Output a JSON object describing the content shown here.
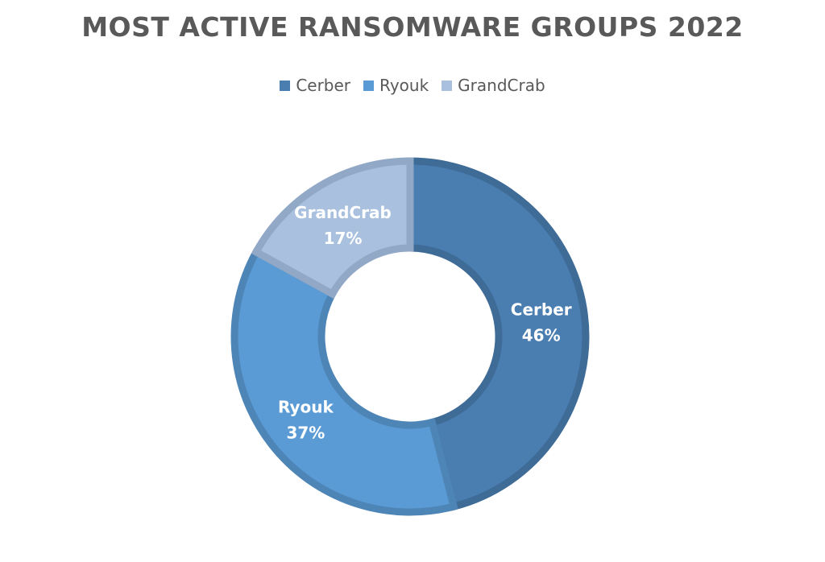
{
  "chart_data": {
    "type": "pie",
    "style": "donut",
    "title": "MOST ACTIVE RANSOMWARE GROUPS 2022",
    "legend_position": "top",
    "slices": [
      {
        "label": "Cerber",
        "value": 46,
        "value_label": "46%",
        "color": "#4a7eb1",
        "border": "#3f6b97"
      },
      {
        "label": "Ryouk",
        "value": 37,
        "value_label": "37%",
        "color": "#5b9bd5",
        "border": "#4e85b7"
      },
      {
        "label": "GrandCrab",
        "value": 17,
        "value_label": "17%",
        "color": "#a9c1de",
        "border": "#91a8c6"
      }
    ]
  }
}
